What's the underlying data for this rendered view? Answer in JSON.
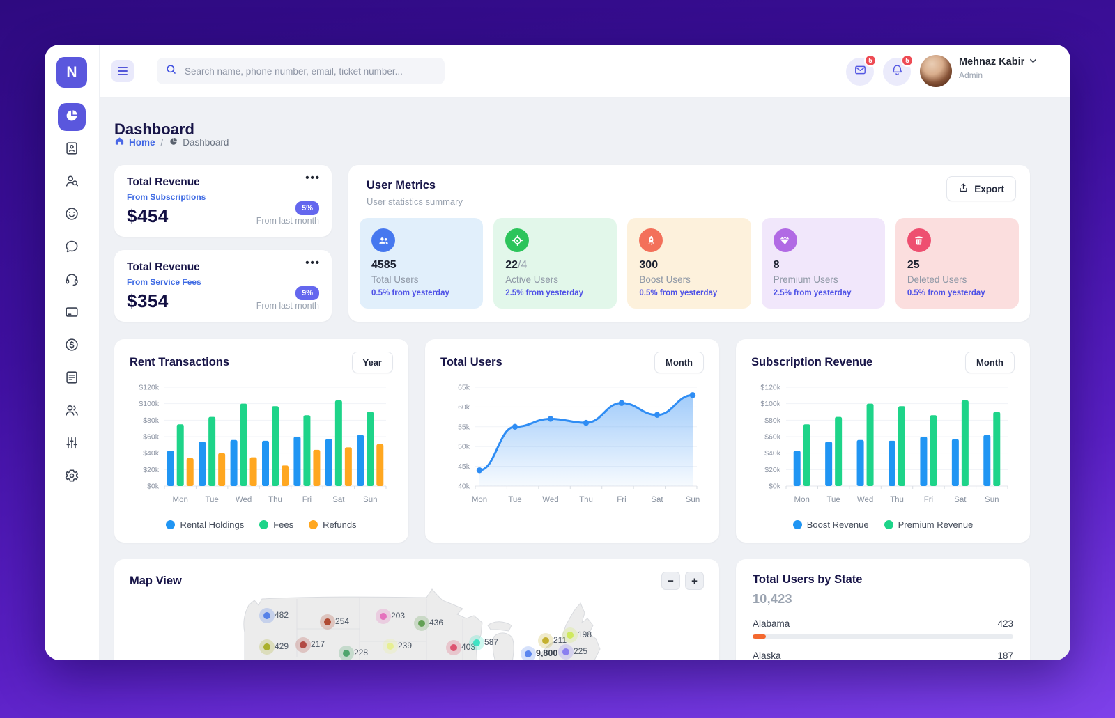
{
  "app": {
    "logo": "N",
    "badges": {
      "mail": "5",
      "notifications": "5"
    },
    "user": {
      "name": "Mehnaz Kabir",
      "role": "Admin"
    }
  },
  "topbar": {
    "search_placeholder": "Search name, phone number, email, ticket number..."
  },
  "page": {
    "title": "Dashboard",
    "breadcrumb": {
      "home": "Home",
      "separator": "/",
      "current": "Dashboard"
    }
  },
  "revenue_cards": [
    {
      "title": "Total Revenue",
      "subtitle": "From Subscriptions",
      "amount": "$454",
      "delta": "5%",
      "delta_note": "From last month"
    },
    {
      "title": "Total Revenue",
      "subtitle": "From Service Fees",
      "amount": "$354",
      "delta": "9%",
      "delta_note": "From last month"
    }
  ],
  "user_metrics": {
    "title": "User Metrics",
    "subtitle": "User statistics summary",
    "export_label": "Export",
    "tiles": [
      {
        "value": "4585",
        "suffix": "",
        "label": "Total Users",
        "delta": "0.5% from yesterday",
        "icon": "users-icon",
        "bg": "#e1effb",
        "icon_bg": "#4678ef"
      },
      {
        "value": "22",
        "suffix": "/4",
        "label": "Active Users",
        "delta": "2.5% from yesterday",
        "icon": "target-icon",
        "bg": "#e2f7ea",
        "icon_bg": "#2cc45b"
      },
      {
        "value": "300",
        "suffix": "",
        "label": "Boost Users",
        "delta": "0.5% from yesterday",
        "icon": "rocket-icon",
        "bg": "#fdf1dc",
        "icon_bg": "#f3705a"
      },
      {
        "value": "8",
        "suffix": "",
        "label": "Premium Users",
        "delta": "2.5% from yesterday",
        "icon": "diamond-icon",
        "bg": "#f1e7fb",
        "icon_bg": "#b16ae4"
      },
      {
        "value": "25",
        "suffix": "",
        "label": "Deleted Users",
        "delta": "0.5% from yesterday",
        "icon": "trash-icon",
        "bg": "#fbdede",
        "icon_bg": "#ee4f70"
      }
    ]
  },
  "chart_data": [
    {
      "type": "bar",
      "title": "Rent Transactions",
      "period_label": "Year",
      "categories": [
        "Mon",
        "Tue",
        "Wed",
        "Thu",
        "Fri",
        "Sat",
        "Sun"
      ],
      "series": [
        {
          "name": "Rental Holdings",
          "color": "#2095f3",
          "values": [
            43,
            54,
            56,
            55,
            60,
            57,
            62
          ]
        },
        {
          "name": "Fees",
          "color": "#1ed489",
          "values": [
            75,
            84,
            100,
            97,
            86,
            104,
            90
          ]
        },
        {
          "name": "Refunds",
          "color": "#ffa720",
          "values": [
            34,
            40,
            35,
            25,
            44,
            47,
            51
          ]
        }
      ],
      "ylim": [
        0,
        120
      ],
      "yticks": [
        "$0k",
        "$20k",
        "$40k",
        "$60k",
        "$80k",
        "$100k",
        "$120k"
      ],
      "legend_position": "bottom",
      "grid": true
    },
    {
      "type": "area",
      "title": "Total Users",
      "period_label": "Month",
      "x": [
        "Mon",
        "Tue",
        "Wed",
        "Thu",
        "Fri",
        "Sat",
        "Sun"
      ],
      "values": [
        44,
        55,
        57,
        56,
        61,
        58,
        63
      ],
      "color": "#2f8df4",
      "ylim": [
        40,
        65
      ],
      "yticks": [
        "40k",
        "45k",
        "50k",
        "55k",
        "60k",
        "65k"
      ],
      "grid": true
    },
    {
      "type": "bar",
      "title": "Subscription Revenue",
      "period_label": "Month",
      "categories": [
        "Mon",
        "Tue",
        "Wed",
        "Thu",
        "Fri",
        "Sat",
        "Sun"
      ],
      "series": [
        {
          "name": "Boost Revenue",
          "color": "#2095f3",
          "values": [
            43,
            54,
            56,
            55,
            60,
            57,
            62
          ]
        },
        {
          "name": "Premium Revenue",
          "color": "#1ed489",
          "values": [
            75,
            84,
            100,
            97,
            86,
            104,
            90
          ]
        }
      ],
      "ylim": [
        0,
        120
      ],
      "yticks": [
        "$0k",
        "$20k",
        "$40k",
        "$60k",
        "$80k",
        "$100k",
        "$120k"
      ],
      "legend_position": "bottom",
      "grid": true
    }
  ],
  "map_view": {
    "title": "Map View",
    "zoom_out_label": "−",
    "zoom_in_label": "+",
    "markers": [
      {
        "label": "482",
        "color": "#5581e8",
        "x": 219,
        "y": 81
      },
      {
        "label": "254",
        "color": "#b04a32",
        "x": 306,
        "y": 90
      },
      {
        "label": "203",
        "color": "#e571bd",
        "x": 386,
        "y": 82
      },
      {
        "label": "436",
        "color": "#63a054",
        "x": 441,
        "y": 92
      },
      {
        "label": "429",
        "color": "#aab02c",
        "x": 219,
        "y": 126
      },
      {
        "label": "217",
        "color": "#b34a44",
        "x": 271,
        "y": 123
      },
      {
        "label": "228",
        "color": "#4fa56d",
        "x": 333,
        "y": 135
      },
      {
        "label": "239",
        "color": "#e7ef92",
        "x": 396,
        "y": 125
      },
      {
        "label": "403",
        "color": "#dd5370",
        "x": 487,
        "y": 127
      },
      {
        "label": "587",
        "color": "#3fe3c4",
        "x": 520,
        "y": 120
      },
      {
        "label": "9,800",
        "color": "#5b86ef",
        "x": 594,
        "y": 136,
        "bold": true
      },
      {
        "label": "225",
        "color": "#8a7ff0",
        "x": 648,
        "y": 133
      },
      {
        "label": "211",
        "color": "#c4b02f",
        "x": 619,
        "y": 117
      },
      {
        "label": "198",
        "color": "#cfe95e",
        "x": 654,
        "y": 109
      }
    ]
  },
  "users_by_state": {
    "title": "Total Users by State",
    "total": "10,423",
    "bar_color": "#f4682f",
    "rows": [
      {
        "state": "Alabama",
        "value": "423",
        "pct": 5
      },
      {
        "state": "Alaska",
        "value": "187",
        "pct": 3
      }
    ]
  }
}
